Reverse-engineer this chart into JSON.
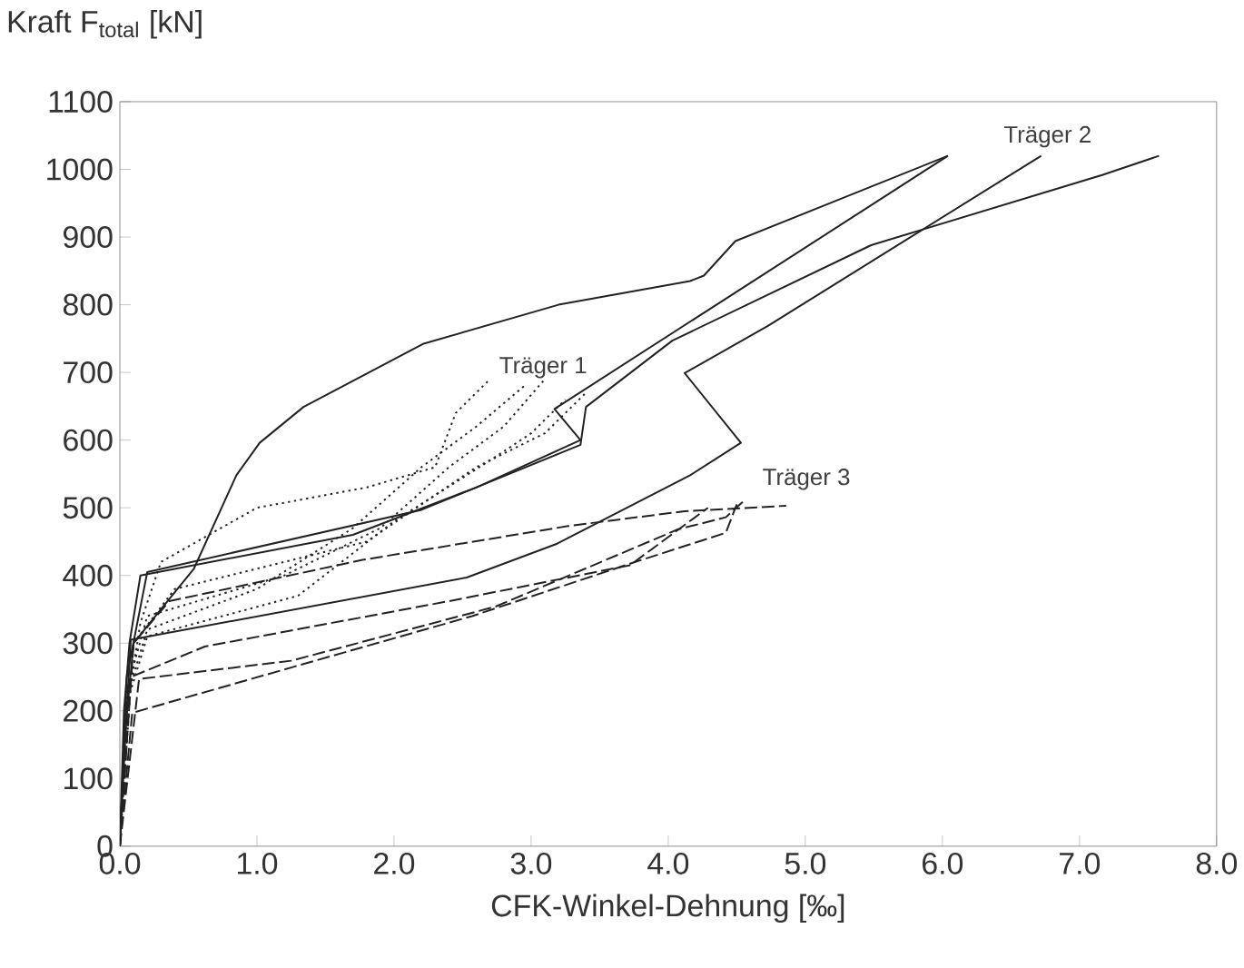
{
  "chart_data": {
    "type": "line",
    "xlabel": "CFK-Winkel-Dehnung [‰]",
    "ylabel": "Kraft F$_{total}$ [kN]",
    "xlim": [
      0,
      8
    ],
    "ylim": [
      0,
      1100
    ],
    "xticks": [
      {
        "value": 0,
        "label": "0.0"
      },
      {
        "value": 1,
        "label": "1.0"
      },
      {
        "value": 2,
        "label": "2.0"
      },
      {
        "value": 3,
        "label": "3.0"
      },
      {
        "value": 4,
        "label": "4.0"
      },
      {
        "value": 5,
        "label": "5.0"
      },
      {
        "value": 6,
        "label": "6.0"
      },
      {
        "value": 7,
        "label": "7.0"
      },
      {
        "value": 8,
        "label": "8.0"
      }
    ],
    "yticks": [
      0,
      100,
      200,
      300,
      400,
      500,
      600,
      700,
      800,
      900,
      1000,
      1100
    ],
    "grid": false,
    "marker": "none",
    "series": [
      {
        "color": "#222222",
        "line_style": "solid",
        "x": [
          0,
          0.03,
          0.1,
          0.3,
          0.54,
          0.85,
          1.02,
          1.34,
          2.21,
          3.2,
          4.16,
          4.26,
          4.49,
          6.04
        ],
        "values": [
          0,
          150,
          300,
          350,
          410,
          548,
          596,
          649,
          742,
          800,
          835,
          843,
          894,
          1020
        ]
      },
      {
        "color": "#222222",
        "line_style": "solid",
        "x": [
          0,
          0.03,
          0.07,
          0.15,
          1.7,
          2.6,
          3.36,
          3.17,
          6.04
        ],
        "values": [
          0,
          200,
          300,
          400,
          460,
          530,
          600,
          646,
          1020
        ]
      },
      {
        "color": "#222222",
        "line_style": "solid",
        "x": [
          0,
          0.05,
          0.2,
          2.2,
          3.36,
          3.4,
          4.03,
          5.48,
          7.17,
          7.58
        ],
        "values": [
          0,
          250,
          405,
          497,
          593,
          649,
          747,
          888,
          992,
          1020
        ]
      },
      {
        "color": "#222222",
        "line_style": "solid",
        "x": [
          0,
          0.05,
          0.08,
          2.53,
          3.19,
          4.16,
          4.53,
          4.12,
          4.73,
          6.72
        ],
        "values": [
          0,
          200,
          305,
          397,
          447,
          548,
          596,
          699,
          769,
          1020
        ]
      },
      {
        "color": "#222222",
        "line_style": "dotted",
        "x": [
          0,
          0.05,
          0.15,
          0.3,
          1.0,
          1.8,
          2.3,
          2.45,
          2.7
        ],
        "values": [
          0,
          200,
          330,
          420,
          500,
          530,
          560,
          640,
          690
        ]
      },
      {
        "color": "#222222",
        "line_style": "dotted",
        "x": [
          0,
          0.05,
          0.2,
          1.0,
          1.7,
          2.2,
          2.6,
          2.95
        ],
        "values": [
          0,
          220,
          320,
          380,
          470,
          560,
          620,
          680
        ]
      },
      {
        "color": "#222222",
        "line_style": "dotted",
        "x": [
          0,
          0.05,
          0.2,
          1.2,
          1.9,
          2.4,
          2.8,
          3.1
        ],
        "values": [
          0,
          230,
          340,
          400,
          470,
          560,
          620,
          690
        ]
      },
      {
        "color": "#222222",
        "line_style": "dotted",
        "x": [
          0,
          0.05,
          0.2,
          1.3,
          2.0,
          2.7,
          3.0,
          3.25
        ],
        "values": [
          0,
          210,
          310,
          370,
          480,
          570,
          610,
          660
        ]
      },
      {
        "color": "#222222",
        "line_style": "dotted",
        "x": [
          0,
          0.1,
          0.4,
          1.8,
          2.6,
          3.1,
          3.4
        ],
        "values": [
          0,
          300,
          380,
          450,
          560,
          610,
          670
        ]
      },
      {
        "color": "#222222",
        "line_style": "dashed",
        "x": [
          0,
          0.1,
          0.36,
          1.77,
          3.27,
          4.12,
          4.86
        ],
        "values": [
          0,
          300,
          362,
          423,
          473,
          495,
          503
        ]
      },
      {
        "color": "#222222",
        "line_style": "dashed",
        "x": [
          0,
          0.08,
          0.62,
          2.4,
          3.72,
          4.29
        ],
        "values": [
          0,
          250,
          295,
          362,
          415,
          500
        ]
      },
      {
        "color": "#222222",
        "line_style": "dashed",
        "x": [
          0,
          0.14,
          1.25,
          2.74,
          4.07,
          4.42,
          4.55
        ],
        "values": [
          0,
          247,
          274,
          354,
          468,
          486,
          510
        ]
      },
      {
        "color": "#222222",
        "line_style": "dashed",
        "x": [
          0,
          0.09,
          1.25,
          2.57,
          3.76,
          4.42,
          4.5
        ],
        "values": [
          0,
          197,
          264,
          340,
          420,
          463,
          505
        ]
      }
    ],
    "annotations": [
      "Träger 1",
      "Träger 2",
      "Träger 3"
    ]
  }
}
